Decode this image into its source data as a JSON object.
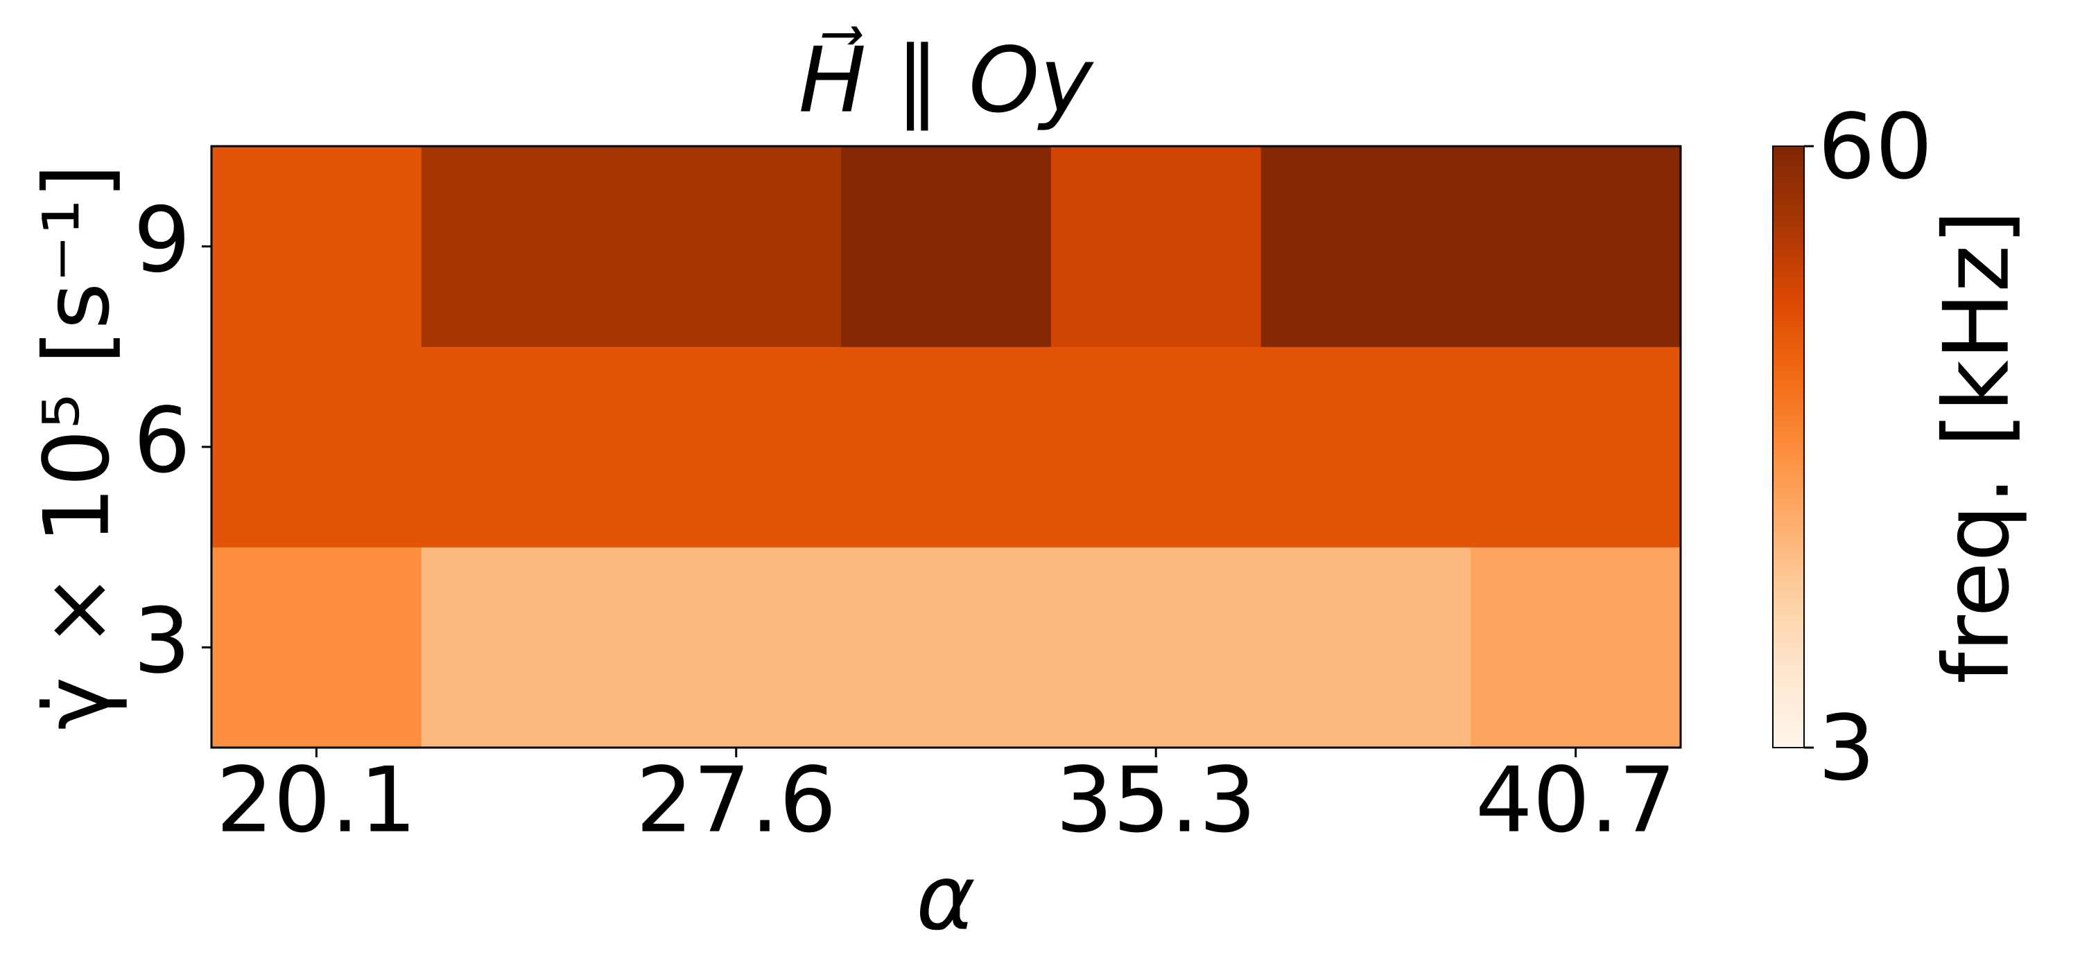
{
  "chart_data": {
    "type": "heatmap",
    "title": "H⃗ ∥ Oy",
    "x_label": "α",
    "y_label": "γ̇ × 10⁵ [s⁻¹]",
    "x_categories": [
      "20.1",
      null,
      "27.6",
      null,
      "35.3",
      null,
      "40.7"
    ],
    "y_categories": [
      3,
      6,
      9
    ],
    "values": [
      [
        31,
        22,
        22,
        22,
        22,
        22,
        26
      ],
      [
        43,
        43,
        43,
        43,
        43,
        43,
        43
      ],
      [
        43,
        53,
        53,
        59,
        47,
        59,
        59
      ]
    ],
    "colormap": "Oranges",
    "colorbar": {
      "label": "freq. [kHz]",
      "clim": [
        3,
        60
      ],
      "ticks": [
        3,
        60
      ]
    }
  }
}
